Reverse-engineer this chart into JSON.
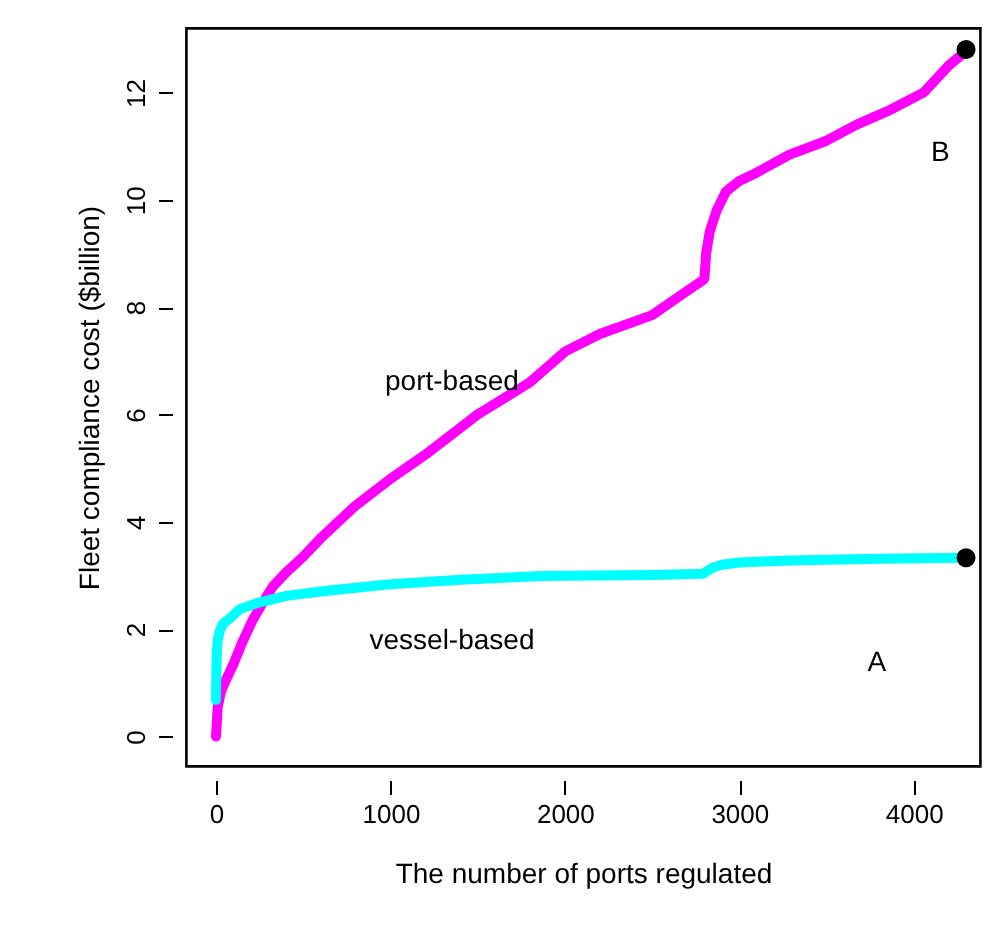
{
  "chart_data": {
    "type": "line",
    "xlabel": "The number of ports regulated",
    "ylabel": "Fleet compliance cost ($billion)",
    "xlim": [
      -172,
      4380
    ],
    "ylim": [
      -0.55,
      13.2
    ],
    "xticks": [
      0,
      1000,
      2000,
      3000,
      4000
    ],
    "yticks": [
      0,
      2,
      4,
      6,
      8,
      10,
      12
    ],
    "grid": false,
    "series": [
      {
        "color": "#ff00ff",
        "x": [
          0,
          10,
          30,
          58,
          100,
          150,
          212,
          260,
          327,
          400,
          500,
          596,
          700,
          800,
          1000,
          1200,
          1500,
          1800,
          2000,
          2200,
          2500,
          2700,
          2790,
          2800,
          2810,
          2830,
          2870,
          2923,
          3000,
          3096,
          3288,
          3500,
          3673,
          3850,
          4058,
          4200,
          4300
        ],
        "values": [
          0,
          0.56,
          0.85,
          1.06,
          1.35,
          1.75,
          2.18,
          2.45,
          2.8,
          3.05,
          3.35,
          3.68,
          4.0,
          4.3,
          4.8,
          5.25,
          6.0,
          6.6,
          7.17,
          7.5,
          7.85,
          8.3,
          8.5,
          8.53,
          9.0,
          9.4,
          9.8,
          10.15,
          10.35,
          10.5,
          10.84,
          11.1,
          11.4,
          11.65,
          12.0,
          12.5,
          12.77
        ]
      },
      {
        "color": "#00ffff",
        "x": [
          0,
          2,
          5,
          10,
          20,
          40,
          80,
          135,
          250,
          404,
          600,
          980,
          1400,
          1865,
          2500,
          2790,
          2850,
          2900,
          3000,
          3290,
          3800,
          4300
        ],
        "values": [
          0.68,
          1.2,
          1.6,
          1.8,
          1.95,
          2.1,
          2.2,
          2.37,
          2.5,
          2.62,
          2.7,
          2.83,
          2.92,
          2.99,
          3.01,
          3.03,
          3.15,
          3.2,
          3.24,
          3.28,
          3.31,
          3.33
        ]
      },
      {
        "type": "scatter",
        "marker": "circle",
        "color": "#000000",
        "x": [
          4300,
          4300
        ],
        "values": [
          12.8,
          3.33
        ]
      }
    ],
    "annotations": [
      "port-based",
      "vessel-based",
      "A",
      "B"
    ]
  }
}
